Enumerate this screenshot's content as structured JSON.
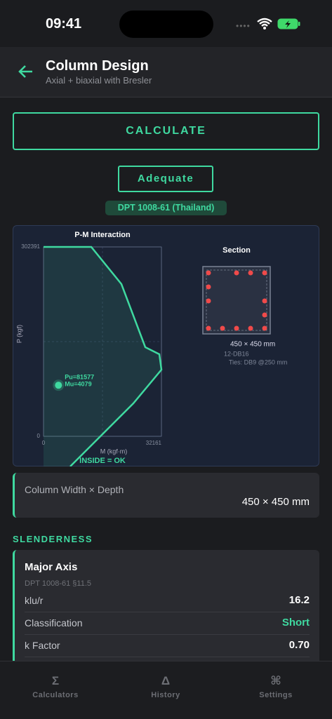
{
  "status_bar": {
    "time": "09:41"
  },
  "header": {
    "title": "Column Design",
    "subtitle": "Axial + biaxial with Bresler"
  },
  "calculate_button": "CALCULATE",
  "result_badge": "Adequate",
  "code_chip": "DPT 1008-61 (Thailand)",
  "pm_chart": {
    "type": "line",
    "title": "P-M Interaction",
    "x_label": "M (kgf·m)",
    "y_label": "P (kgf)",
    "xlim": [
      0,
      32161
    ],
    "ylim": [
      0,
      302391
    ],
    "xticks": [
      0,
      32161
    ],
    "yticks": [
      0,
      302391
    ],
    "M": [
      0,
      13018,
      21249,
      27758,
      31587,
      32161,
      24504,
      7274
    ],
    "P": [
      302391,
      302391,
      243033,
      142235,
      131036,
      106396,
      52638,
      -48160
    ],
    "color": "#3fd9a0",
    "point": {
      "Mu": 4079,
      "Pu": 81577,
      "labels": [
        "Pu=81577",
        "Mu=4079"
      ]
    },
    "annotation": "INSIDE = OK"
  },
  "section": {
    "title": "Section",
    "size": "450 × 450 mm",
    "bars": "12-DB16",
    "ties": "Ties: DB9 @250 mm"
  },
  "input_card": {
    "label": "Column Width × Depth",
    "value": "450 × 450 mm"
  },
  "section_heading": "SLENDERNESS",
  "major_axis": {
    "title": "Major Axis",
    "reference": "DPT 1008-61 §11.5",
    "rows": [
      [
        "klu/r",
        "16.2"
      ],
      [
        "Classification",
        "Short"
      ],
      [
        "k Factor",
        "0.70"
      ]
    ]
  },
  "tabs": [
    {
      "icon": "Σ",
      "label": "Calculators"
    },
    {
      "icon": "Δ",
      "label": "History"
    },
    {
      "icon": "⌘",
      "label": "Settings"
    }
  ]
}
